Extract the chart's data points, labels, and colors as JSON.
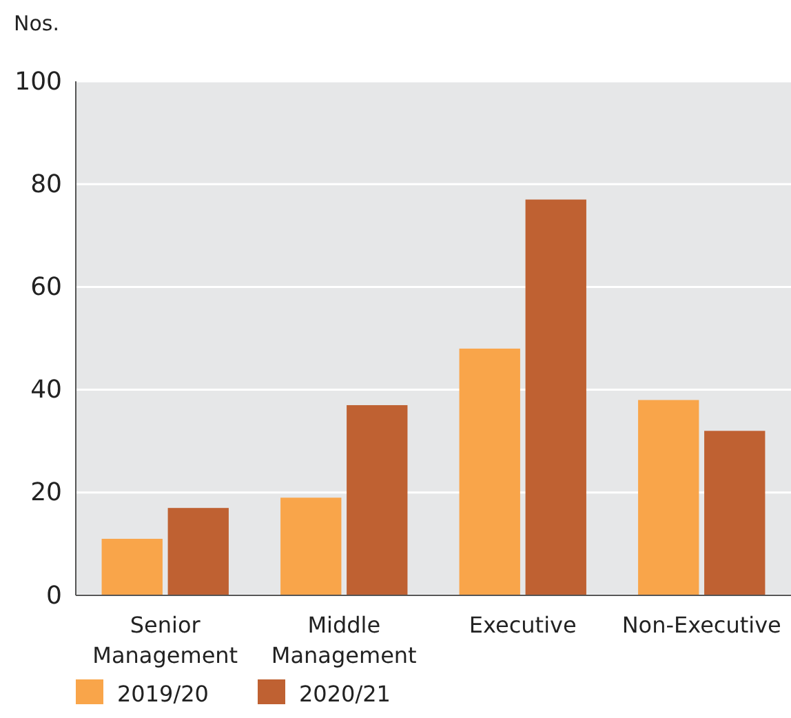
{
  "chart_data": {
    "type": "bar",
    "ylabel": "Nos.",
    "categories": [
      "Senior Management",
      "Middle Management",
      "Executive",
      "Non-Executive"
    ],
    "series": [
      {
        "name": "2019/20",
        "color": "#f9a54a",
        "values": [
          11,
          19,
          48,
          38
        ]
      },
      {
        "name": "2020/21",
        "color": "#bf6132",
        "values": [
          17,
          37,
          77,
          32
        ]
      }
    ],
    "ylim": [
      0,
      100
    ],
    "yticks": [
      0,
      20,
      40,
      60,
      80,
      100
    ],
    "grid": "y",
    "legend": "bottom left"
  }
}
